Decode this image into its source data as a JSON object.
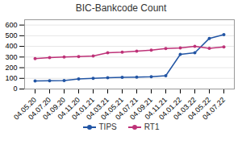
{
  "chart_data": {
    "type": "line",
    "title": "BIC-Bankcode Count",
    "categories": [
      "04.05.20",
      "04.07.20",
      "04.09.20",
      "04.11.20",
      "04.01.21",
      "04.03.21",
      "04.05.21",
      "04.07.21",
      "04.09.21",
      "04.11.21",
      "04.01.22",
      "04.03.22",
      "04.05.22",
      "04.07.22"
    ],
    "series": [
      {
        "name": "TIPS",
        "color": "#2255A4",
        "values": [
          75,
          78,
          80,
          95,
          100,
          105,
          110,
          112,
          115,
          125,
          325,
          340,
          475,
          510
        ]
      },
      {
        "name": "RT1",
        "color": "#BE3278",
        "values": [
          285,
          295,
          300,
          305,
          310,
          340,
          345,
          355,
          365,
          380,
          385,
          400,
          382,
          395
        ]
      }
    ],
    "ylim": [
      0,
      650
    ],
    "yticks": [
      0,
      100,
      200,
      300,
      400,
      500,
      600
    ],
    "grid": true,
    "legend": "bottom",
    "marker": "circle"
  }
}
